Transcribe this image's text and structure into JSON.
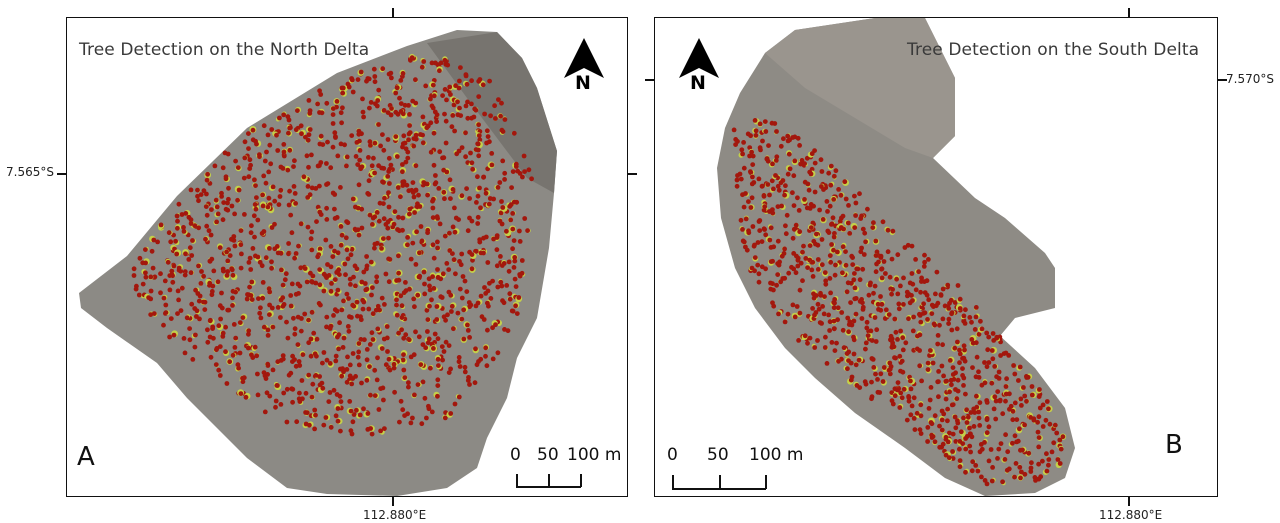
{
  "panels": [
    {
      "id": "A",
      "title": "Tree Detection on the North Delta",
      "letter": "A",
      "north_label": "N",
      "scale": {
        "labels": [
          "0",
          "50",
          "100 m"
        ]
      }
    },
    {
      "id": "B",
      "title": "Tree Detection on the South Delta",
      "letter": "B",
      "north_label": "N",
      "scale": {
        "labels": [
          "0",
          "50",
          "100 m"
        ]
      }
    }
  ],
  "coords": {
    "north_lat": "7.565°S",
    "south_lat": "7.570°S",
    "north_lon": "112.880°E",
    "south_lon": "112.880°E"
  },
  "colors": {
    "tree_dot": "#a3170d",
    "canopy": "#c4d04a",
    "ground": "#8a8782",
    "frame": "#111111"
  },
  "icons": [
    "north-arrow-icon"
  ]
}
